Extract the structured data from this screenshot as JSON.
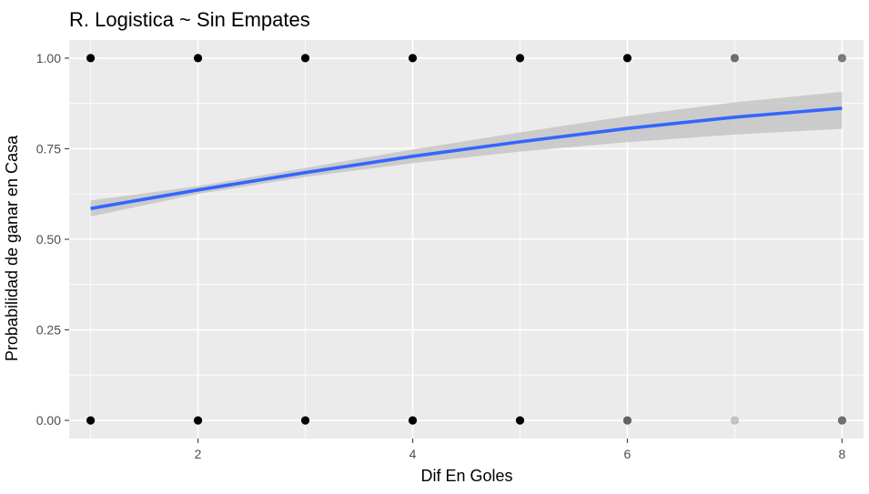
{
  "chart_data": {
    "type": "scatter",
    "title": "R. Logistica ~ Sin Empates",
    "xlabel": "Dif En Goles",
    "ylabel": "Probabilidad de ganar en Casa",
    "xlim": [
      0.8,
      8.2
    ],
    "ylim": [
      -0.05,
      1.05
    ],
    "x_ticks": [
      2,
      4,
      6,
      8
    ],
    "x_tick_labels": [
      "2",
      "4",
      "6",
      "8"
    ],
    "y_ticks": [
      0,
      0.25,
      0.5,
      0.75,
      1
    ],
    "y_tick_labels": [
      "0.00",
      "0.25",
      "0.50",
      "0.75",
      "1.00"
    ],
    "grid": true,
    "points": [
      {
        "x": 1,
        "y": 1,
        "alpha": 1.0
      },
      {
        "x": 2,
        "y": 1,
        "alpha": 1.0
      },
      {
        "x": 3,
        "y": 1,
        "alpha": 1.0
      },
      {
        "x": 4,
        "y": 1,
        "alpha": 1.0
      },
      {
        "x": 5,
        "y": 1,
        "alpha": 1.0
      },
      {
        "x": 6,
        "y": 1,
        "alpha": 1.0
      },
      {
        "x": 7,
        "y": 1,
        "alpha": 0.55
      },
      {
        "x": 8,
        "y": 1,
        "alpha": 0.5
      },
      {
        "x": 1,
        "y": 0,
        "alpha": 1.0
      },
      {
        "x": 2,
        "y": 0,
        "alpha": 1.0
      },
      {
        "x": 3,
        "y": 0,
        "alpha": 1.0
      },
      {
        "x": 4,
        "y": 0,
        "alpha": 1.0
      },
      {
        "x": 5,
        "y": 0,
        "alpha": 1.0
      },
      {
        "x": 6,
        "y": 0,
        "alpha": 0.6
      },
      {
        "x": 7,
        "y": 0,
        "alpha": 0.2
      },
      {
        "x": 8,
        "y": 0,
        "alpha": 0.55
      }
    ],
    "fit_line": {
      "x": [
        1,
        2,
        3,
        4,
        5,
        6,
        7,
        8
      ],
      "y": [
        0.585,
        0.636,
        0.684,
        0.729,
        0.769,
        0.806,
        0.837,
        0.862
      ],
      "ci_lower": [
        0.563,
        0.625,
        0.672,
        0.71,
        0.742,
        0.768,
        0.789,
        0.805
      ],
      "ci_upper": [
        0.607,
        0.647,
        0.697,
        0.748,
        0.795,
        0.84,
        0.878,
        0.907
      ]
    },
    "colors": {
      "panel": "#ebebeb",
      "grid": "#ffffff",
      "line": "#3366ff",
      "ribbon": "#c6c6c6",
      "points": "#000000",
      "ticks": "#4d4d4d"
    }
  }
}
